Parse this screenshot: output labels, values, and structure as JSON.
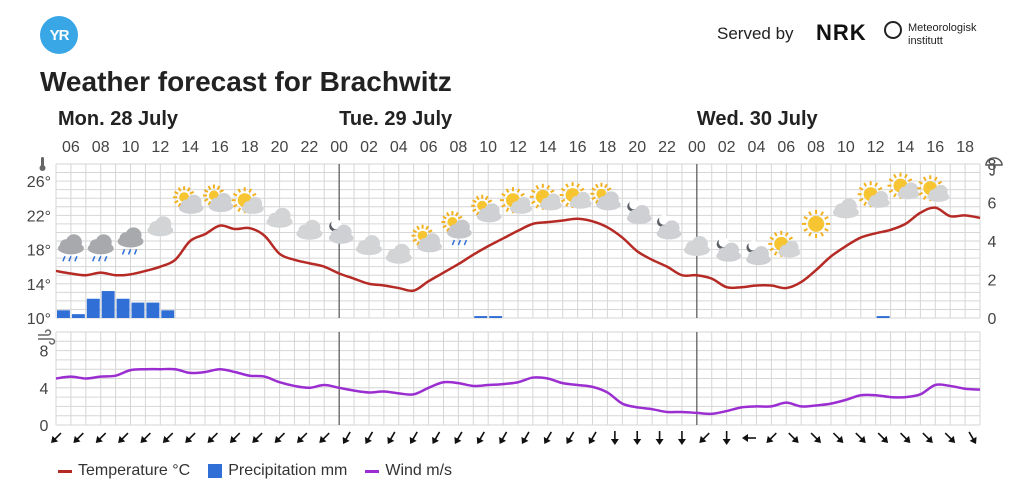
{
  "header": {
    "logo_text": "YR",
    "served_by": "Served by",
    "nrk_logo": "NRK",
    "met_line1": "Meteorologisk",
    "met_line2": "institutt",
    "title": "Weather forecast for Brachwitz"
  },
  "days": [
    {
      "label": "Mon. 28 July",
      "hour": 6
    },
    {
      "label": "Tue. 29 July",
      "hour": 24
    },
    {
      "label": "Wed. 30 July",
      "hour": 48
    }
  ],
  "legend": {
    "temperature": "Temperature °C",
    "precipitation": "Precipitation mm",
    "wind": "Wind m/s"
  },
  "colors": {
    "temperature": "#b52a24",
    "precipitation": "#2f6fd6",
    "wind": "#9b2ed0",
    "grid": "#d6d6d6",
    "divider": "#555555"
  },
  "chart_data": {
    "type": "line",
    "x_start_hour": 5,
    "x_end_hour": 67,
    "hour_tick_labels": [
      "06",
      "08",
      "10",
      "12",
      "14",
      "16",
      "18",
      "20",
      "22",
      "00",
      "02",
      "04",
      "06",
      "08",
      "10",
      "12",
      "14",
      "16",
      "18",
      "20",
      "22",
      "00",
      "02",
      "04",
      "06",
      "08",
      "10",
      "12",
      "14",
      "16",
      "18"
    ],
    "temperature": {
      "ylim": [
        10,
        28
      ],
      "ticks": [
        "10°",
        "14°",
        "18°",
        "22°",
        "26°"
      ],
      "tick_values": [
        10,
        14,
        18,
        22,
        26
      ],
      "values": [
        15.5,
        15.2,
        15.0,
        15.3,
        15.0,
        15.1,
        15.5,
        16.0,
        16.8,
        19.0,
        19.8,
        20.8,
        20.4,
        20.5,
        19.6,
        17.5,
        16.8,
        16.4,
        16.0,
        15.2,
        14.6,
        14.0,
        13.8,
        13.5,
        13.2,
        14.3,
        15.3,
        16.3,
        17.4,
        18.4,
        19.3,
        20.2,
        21.0,
        21.2,
        21.4,
        21.6,
        21.3,
        20.6,
        19.4,
        17.8,
        16.8,
        16.0,
        15.0,
        15.0,
        14.6,
        13.6,
        13.6,
        13.8,
        13.8,
        13.5,
        14.2,
        15.6,
        17.2,
        18.4,
        19.4,
        19.9,
        20.3,
        21.0,
        22.3,
        22.9,
        21.9,
        22.0,
        21.7
      ]
    },
    "precipitation": {
      "ylim": [
        0,
        8
      ],
      "ticks": [
        "0",
        "2",
        "4",
        "6",
        "8"
      ],
      "tick_values": [
        0,
        2,
        4,
        6,
        8
      ],
      "bars": [
        {
          "hour": 5,
          "value": 0.4
        },
        {
          "hour": 6,
          "value": 0.2
        },
        {
          "hour": 7,
          "value": 1.0
        },
        {
          "hour": 8,
          "value": 1.4
        },
        {
          "hour": 9,
          "value": 1.0
        },
        {
          "hour": 10,
          "value": 0.8
        },
        {
          "hour": 11,
          "value": 0.8
        },
        {
          "hour": 12,
          "value": 0.4
        },
        {
          "hour": 33,
          "value": 0.1
        },
        {
          "hour": 34,
          "value": 0.1
        },
        {
          "hour": 60,
          "value": 0.1
        }
      ]
    },
    "wind": {
      "ylim": [
        0,
        10
      ],
      "ticks": [
        "0",
        "4",
        "8"
      ],
      "tick_values": [
        0,
        4,
        8
      ],
      "values": [
        5.0,
        5.2,
        5.0,
        5.2,
        5.3,
        5.9,
        6.0,
        6.0,
        6.0,
        5.6,
        5.7,
        6.0,
        5.7,
        5.3,
        5.2,
        4.6,
        4.2,
        4.0,
        4.3,
        4.0,
        3.7,
        3.5,
        3.6,
        3.4,
        3.3,
        4.0,
        4.6,
        4.5,
        4.2,
        4.3,
        4.4,
        4.6,
        5.1,
        5.0,
        4.5,
        4.3,
        4.1,
        3.5,
        2.3,
        1.9,
        1.7,
        1.4,
        1.4,
        1.3,
        1.2,
        1.5,
        1.9,
        2.0,
        2.0,
        2.4,
        2.0,
        2.1,
        2.3,
        2.7,
        3.2,
        3.2,
        3.0,
        3.0,
        3.3,
        4.3,
        4.2,
        3.9,
        3.8
      ]
    },
    "wind_directions_deg": [
      135,
      135,
      135,
      135,
      135,
      135,
      135,
      135,
      135,
      135,
      135,
      135,
      135,
      120,
      120,
      120,
      120,
      120,
      120,
      120,
      120,
      120,
      120,
      120,
      120,
      90,
      90,
      90,
      90,
      135,
      90,
      180,
      135,
      45,
      45,
      45,
      45,
      45,
      45,
      45,
      45,
      60,
      45
    ],
    "weather_icons": [
      {
        "hour": 6,
        "icon": "rain-cloud-icon",
        "temp_anchor": 18.5
      },
      {
        "hour": 8,
        "icon": "rain-cloud-icon",
        "temp_anchor": 18.5
      },
      {
        "hour": 10,
        "icon": "rain-cloud-icon",
        "temp_anchor": 19.3
      },
      {
        "hour": 12,
        "icon": "cloud-icon",
        "temp_anchor": 20.6
      },
      {
        "hour": 14,
        "icon": "partly-cloudy-icon",
        "temp_anchor": 23.3
      },
      {
        "hour": 16,
        "icon": "partly-cloudy-icon",
        "temp_anchor": 23.5
      },
      {
        "hour": 18,
        "icon": "partly-sunny-icon",
        "temp_anchor": 23.3
      },
      {
        "hour": 20,
        "icon": "cloud-icon",
        "temp_anchor": 21.6
      },
      {
        "hour": 22,
        "icon": "cloud-icon",
        "temp_anchor": 20.2
      },
      {
        "hour": 24,
        "icon": "night-cloud-icon",
        "temp_anchor": 19.8
      },
      {
        "hour": 26,
        "icon": "cloud-icon",
        "temp_anchor": 18.4
      },
      {
        "hour": 28,
        "icon": "cloud-icon",
        "temp_anchor": 17.4
      },
      {
        "hour": 30,
        "icon": "partly-cloudy-icon",
        "temp_anchor": 18.8
      },
      {
        "hour": 32,
        "icon": "partly-cloudy-rain-icon",
        "temp_anchor": 20.4
      },
      {
        "hour": 34,
        "icon": "partly-cloudy-icon",
        "temp_anchor": 22.3
      },
      {
        "hour": 36,
        "icon": "partly-sunny-icon",
        "temp_anchor": 23.3
      },
      {
        "hour": 38,
        "icon": "partly-sunny-icon",
        "temp_anchor": 23.7
      },
      {
        "hour": 40,
        "icon": "partly-sunny-icon",
        "temp_anchor": 23.9
      },
      {
        "hour": 42,
        "icon": "partly-cloudy-icon",
        "temp_anchor": 23.7
      },
      {
        "hour": 44,
        "icon": "night-cloud-icon",
        "temp_anchor": 22.1
      },
      {
        "hour": 46,
        "icon": "night-cloud-icon",
        "temp_anchor": 20.3
      },
      {
        "hour": 48,
        "icon": "cloud-icon",
        "temp_anchor": 18.3
      },
      {
        "hour": 50,
        "icon": "night-cloud-icon",
        "temp_anchor": 17.7
      },
      {
        "hour": 52,
        "icon": "night-cloud-icon",
        "temp_anchor": 17.3
      },
      {
        "hour": 54,
        "icon": "partly-sunny-icon",
        "temp_anchor": 18.2
      },
      {
        "hour": 56,
        "icon": "sun-icon",
        "temp_anchor": 21.0
      },
      {
        "hour": 58,
        "icon": "cloud-icon",
        "temp_anchor": 22.7
      },
      {
        "hour": 60,
        "icon": "partly-sunny-icon",
        "temp_anchor": 24.0
      },
      {
        "hour": 62,
        "icon": "partly-sunny-icon",
        "temp_anchor": 25.0
      },
      {
        "hour": 64,
        "icon": "partly-sunny-icon",
        "temp_anchor": 24.7
      }
    ]
  }
}
